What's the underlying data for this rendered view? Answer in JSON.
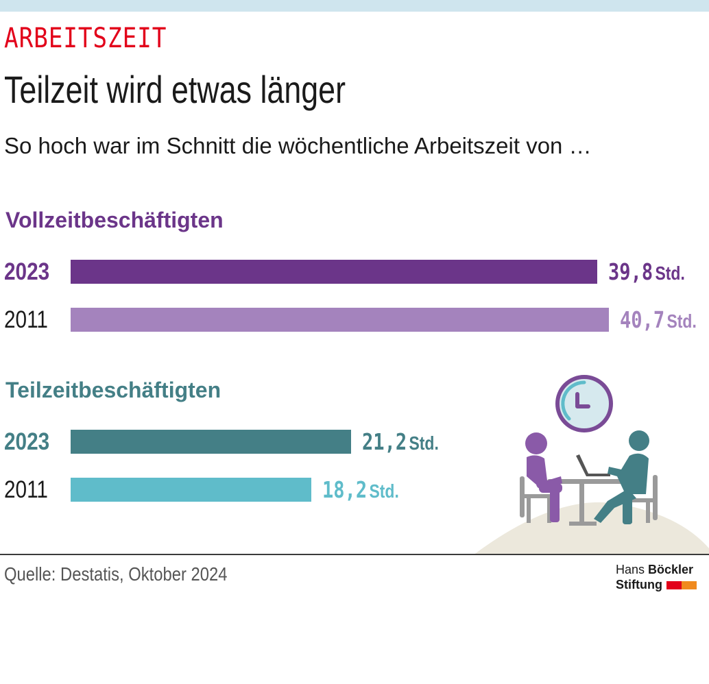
{
  "header": {
    "kicker": "ARBEITSZEIT",
    "title": "Teilzeit wird etwas länger",
    "subtitle": "So hoch war im Schnitt die wöchentliche Arbeitszeit von …"
  },
  "footer": {
    "source": "Quelle: Destatis, Oktober 2024",
    "logo_line1_a": "Hans ",
    "logo_line1_b": "Böckler",
    "logo_line2": "Stiftung"
  },
  "colors": {
    "kicker": "#e2001a",
    "vollzeit_2023": "#6b3589",
    "vollzeit_2011": "#a483bd",
    "teilzeit_2023": "#447f86",
    "teilzeit_2011": "#5fbcca",
    "logo_red": "#e2001a",
    "logo_orange": "#f08a1e"
  },
  "illustration": {
    "icon": "meeting-with-clock-icon"
  },
  "chart_data": {
    "type": "bar",
    "orientation": "horizontal",
    "unit": "Std.",
    "groups": [
      {
        "name": "Vollzeitbeschäftigten",
        "bars": [
          {
            "year": "2023",
            "value": 39.8,
            "label": "39,8",
            "color": "#6b3589"
          },
          {
            "year": "2011",
            "value": 40.7,
            "label": "40,7",
            "color": "#a483bd"
          }
        ]
      },
      {
        "name": "Teilzeitbeschäftigten",
        "bars": [
          {
            "year": "2023",
            "value": 21.2,
            "label": "21,2",
            "color": "#447f86"
          },
          {
            "year": "2011",
            "value": 18.2,
            "label": "18,2",
            "color": "#5fbcca"
          }
        ]
      }
    ]
  }
}
